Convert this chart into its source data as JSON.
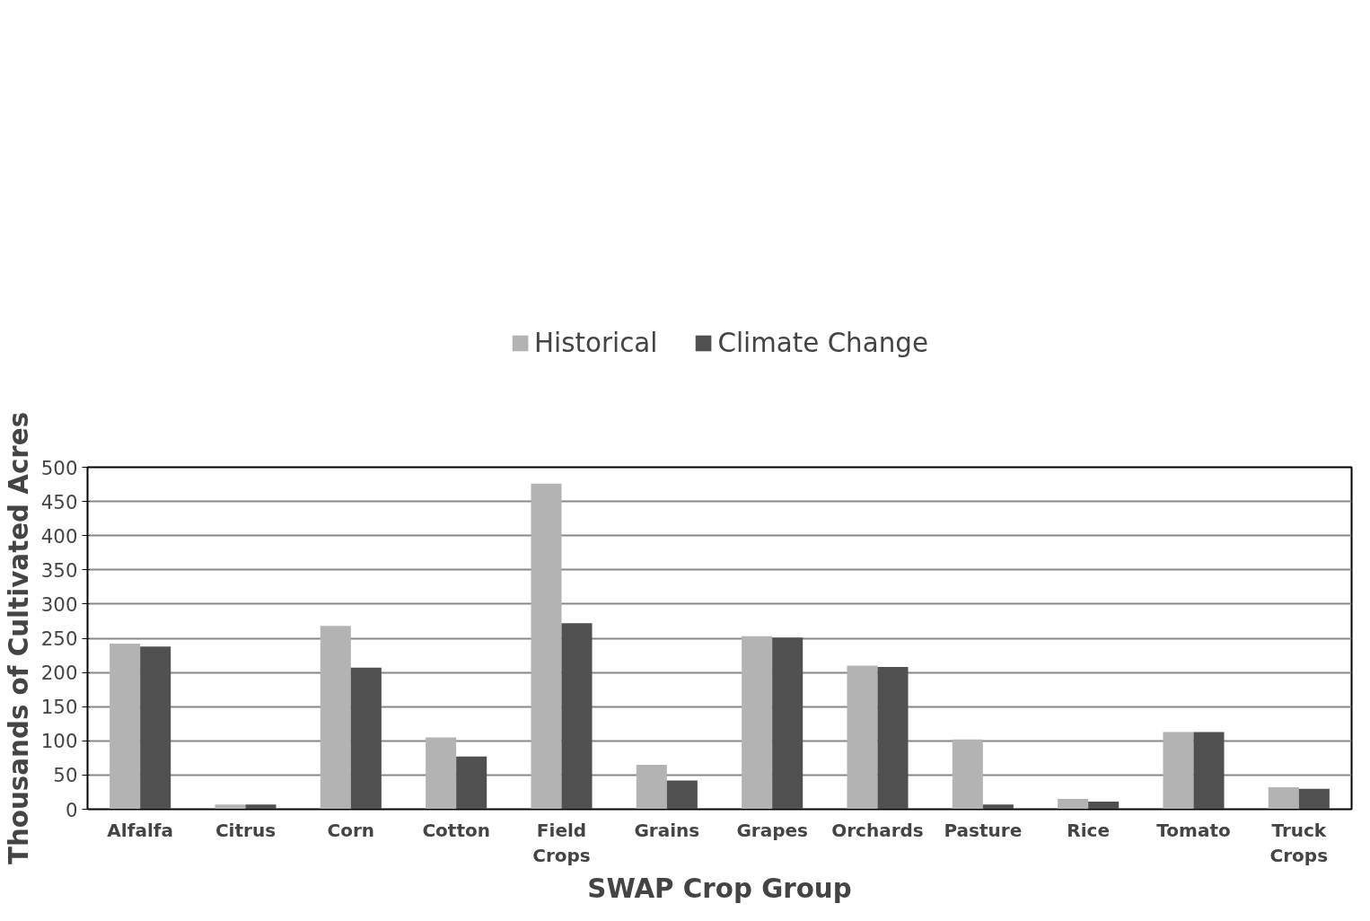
{
  "chart_data": {
    "type": "bar",
    "xlabel": "SWAP Crop Group",
    "ylabel": "Thousands of Cultivated Acres",
    "categories": [
      "Alfalfa",
      "Citrus",
      "Corn",
      "Cotton",
      "Field\nCrops",
      "Grains",
      "Grapes",
      "Orchards",
      "Pasture",
      "Rice",
      "Tomato",
      "Truck\nCrops"
    ],
    "series": [
      {
        "name": "Historical",
        "color": "#b3b3b3",
        "values": [
          242,
          7,
          268,
          105,
          476,
          65,
          253,
          210,
          102,
          15,
          113,
          32
        ]
      },
      {
        "name": "Climate Change",
        "color": "#505050",
        "values": [
          238,
          7,
          207,
          77,
          272,
          42,
          251,
          208,
          7,
          11,
          113,
          30
        ]
      }
    ],
    "ylim": [
      0,
      500
    ],
    "yticks": [
      0,
      50,
      100,
      150,
      200,
      250,
      300,
      350,
      400,
      450,
      500
    ],
    "grid": "y",
    "legend": "top"
  }
}
